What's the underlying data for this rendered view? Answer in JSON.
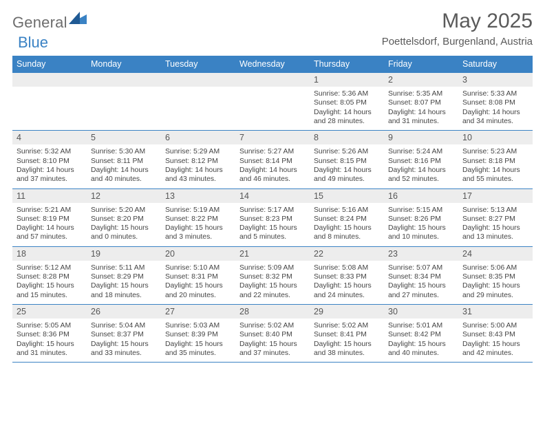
{
  "logo": {
    "part1": "General",
    "part2": "Blue"
  },
  "title": "May 2025",
  "location": "Poettelsdorf, Burgenland, Austria",
  "colors": {
    "accent": "#3a82c4",
    "dayBarBg": "#ededed",
    "text": "#444444",
    "titleText": "#5a5a5a"
  },
  "dow": [
    "Sunday",
    "Monday",
    "Tuesday",
    "Wednesday",
    "Thursday",
    "Friday",
    "Saturday"
  ],
  "weeks": [
    [
      {
        "n": "",
        "sunrise": "",
        "sunset": "",
        "dl1": "",
        "dl2": ""
      },
      {
        "n": "",
        "sunrise": "",
        "sunset": "",
        "dl1": "",
        "dl2": ""
      },
      {
        "n": "",
        "sunrise": "",
        "sunset": "",
        "dl1": "",
        "dl2": ""
      },
      {
        "n": "",
        "sunrise": "",
        "sunset": "",
        "dl1": "",
        "dl2": ""
      },
      {
        "n": "1",
        "sunrise": "Sunrise: 5:36 AM",
        "sunset": "Sunset: 8:05 PM",
        "dl1": "Daylight: 14 hours",
        "dl2": "and 28 minutes."
      },
      {
        "n": "2",
        "sunrise": "Sunrise: 5:35 AM",
        "sunset": "Sunset: 8:07 PM",
        "dl1": "Daylight: 14 hours",
        "dl2": "and 31 minutes."
      },
      {
        "n": "3",
        "sunrise": "Sunrise: 5:33 AM",
        "sunset": "Sunset: 8:08 PM",
        "dl1": "Daylight: 14 hours",
        "dl2": "and 34 minutes."
      }
    ],
    [
      {
        "n": "4",
        "sunrise": "Sunrise: 5:32 AM",
        "sunset": "Sunset: 8:10 PM",
        "dl1": "Daylight: 14 hours",
        "dl2": "and 37 minutes."
      },
      {
        "n": "5",
        "sunrise": "Sunrise: 5:30 AM",
        "sunset": "Sunset: 8:11 PM",
        "dl1": "Daylight: 14 hours",
        "dl2": "and 40 minutes."
      },
      {
        "n": "6",
        "sunrise": "Sunrise: 5:29 AM",
        "sunset": "Sunset: 8:12 PM",
        "dl1": "Daylight: 14 hours",
        "dl2": "and 43 minutes."
      },
      {
        "n": "7",
        "sunrise": "Sunrise: 5:27 AM",
        "sunset": "Sunset: 8:14 PM",
        "dl1": "Daylight: 14 hours",
        "dl2": "and 46 minutes."
      },
      {
        "n": "8",
        "sunrise": "Sunrise: 5:26 AM",
        "sunset": "Sunset: 8:15 PM",
        "dl1": "Daylight: 14 hours",
        "dl2": "and 49 minutes."
      },
      {
        "n": "9",
        "sunrise": "Sunrise: 5:24 AM",
        "sunset": "Sunset: 8:16 PM",
        "dl1": "Daylight: 14 hours",
        "dl2": "and 52 minutes."
      },
      {
        "n": "10",
        "sunrise": "Sunrise: 5:23 AM",
        "sunset": "Sunset: 8:18 PM",
        "dl1": "Daylight: 14 hours",
        "dl2": "and 55 minutes."
      }
    ],
    [
      {
        "n": "11",
        "sunrise": "Sunrise: 5:21 AM",
        "sunset": "Sunset: 8:19 PM",
        "dl1": "Daylight: 14 hours",
        "dl2": "and 57 minutes."
      },
      {
        "n": "12",
        "sunrise": "Sunrise: 5:20 AM",
        "sunset": "Sunset: 8:20 PM",
        "dl1": "Daylight: 15 hours",
        "dl2": "and 0 minutes."
      },
      {
        "n": "13",
        "sunrise": "Sunrise: 5:19 AM",
        "sunset": "Sunset: 8:22 PM",
        "dl1": "Daylight: 15 hours",
        "dl2": "and 3 minutes."
      },
      {
        "n": "14",
        "sunrise": "Sunrise: 5:17 AM",
        "sunset": "Sunset: 8:23 PM",
        "dl1": "Daylight: 15 hours",
        "dl2": "and 5 minutes."
      },
      {
        "n": "15",
        "sunrise": "Sunrise: 5:16 AM",
        "sunset": "Sunset: 8:24 PM",
        "dl1": "Daylight: 15 hours",
        "dl2": "and 8 minutes."
      },
      {
        "n": "16",
        "sunrise": "Sunrise: 5:15 AM",
        "sunset": "Sunset: 8:26 PM",
        "dl1": "Daylight: 15 hours",
        "dl2": "and 10 minutes."
      },
      {
        "n": "17",
        "sunrise": "Sunrise: 5:13 AM",
        "sunset": "Sunset: 8:27 PM",
        "dl1": "Daylight: 15 hours",
        "dl2": "and 13 minutes."
      }
    ],
    [
      {
        "n": "18",
        "sunrise": "Sunrise: 5:12 AM",
        "sunset": "Sunset: 8:28 PM",
        "dl1": "Daylight: 15 hours",
        "dl2": "and 15 minutes."
      },
      {
        "n": "19",
        "sunrise": "Sunrise: 5:11 AM",
        "sunset": "Sunset: 8:29 PM",
        "dl1": "Daylight: 15 hours",
        "dl2": "and 18 minutes."
      },
      {
        "n": "20",
        "sunrise": "Sunrise: 5:10 AM",
        "sunset": "Sunset: 8:31 PM",
        "dl1": "Daylight: 15 hours",
        "dl2": "and 20 minutes."
      },
      {
        "n": "21",
        "sunrise": "Sunrise: 5:09 AM",
        "sunset": "Sunset: 8:32 PM",
        "dl1": "Daylight: 15 hours",
        "dl2": "and 22 minutes."
      },
      {
        "n": "22",
        "sunrise": "Sunrise: 5:08 AM",
        "sunset": "Sunset: 8:33 PM",
        "dl1": "Daylight: 15 hours",
        "dl2": "and 24 minutes."
      },
      {
        "n": "23",
        "sunrise": "Sunrise: 5:07 AM",
        "sunset": "Sunset: 8:34 PM",
        "dl1": "Daylight: 15 hours",
        "dl2": "and 27 minutes."
      },
      {
        "n": "24",
        "sunrise": "Sunrise: 5:06 AM",
        "sunset": "Sunset: 8:35 PM",
        "dl1": "Daylight: 15 hours",
        "dl2": "and 29 minutes."
      }
    ],
    [
      {
        "n": "25",
        "sunrise": "Sunrise: 5:05 AM",
        "sunset": "Sunset: 8:36 PM",
        "dl1": "Daylight: 15 hours",
        "dl2": "and 31 minutes."
      },
      {
        "n": "26",
        "sunrise": "Sunrise: 5:04 AM",
        "sunset": "Sunset: 8:37 PM",
        "dl1": "Daylight: 15 hours",
        "dl2": "and 33 minutes."
      },
      {
        "n": "27",
        "sunrise": "Sunrise: 5:03 AM",
        "sunset": "Sunset: 8:39 PM",
        "dl1": "Daylight: 15 hours",
        "dl2": "and 35 minutes."
      },
      {
        "n": "28",
        "sunrise": "Sunrise: 5:02 AM",
        "sunset": "Sunset: 8:40 PM",
        "dl1": "Daylight: 15 hours",
        "dl2": "and 37 minutes."
      },
      {
        "n": "29",
        "sunrise": "Sunrise: 5:02 AM",
        "sunset": "Sunset: 8:41 PM",
        "dl1": "Daylight: 15 hours",
        "dl2": "and 38 minutes."
      },
      {
        "n": "30",
        "sunrise": "Sunrise: 5:01 AM",
        "sunset": "Sunset: 8:42 PM",
        "dl1": "Daylight: 15 hours",
        "dl2": "and 40 minutes."
      },
      {
        "n": "31",
        "sunrise": "Sunrise: 5:00 AM",
        "sunset": "Sunset: 8:43 PM",
        "dl1": "Daylight: 15 hours",
        "dl2": "and 42 minutes."
      }
    ]
  ]
}
